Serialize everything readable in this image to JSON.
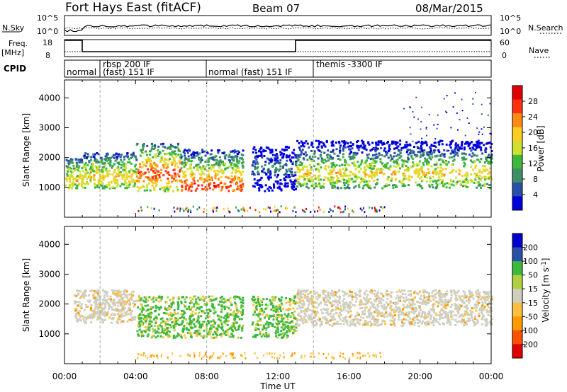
{
  "header": {
    "radar": "Fort Hays East (fitACF)",
    "beam": "Beam 07",
    "date": "08/Mar/2015"
  },
  "top_panels": {
    "nsky_label": "N.Sky",
    "nsky_ticks": [
      "10^5",
      "10^0"
    ],
    "nsearch_label": "N.Search",
    "nsearch_ticks": [
      "10^5",
      "10^0"
    ],
    "freq_label_1": "Freq.",
    "freq_label_2": "[MHz]",
    "freq_ticks": [
      "18",
      "8"
    ],
    "nave_label": "Nave",
    "nave_ticks": [
      "60",
      "0"
    ],
    "cpid_label": "CPID",
    "cpid_segments": [
      {
        "label": "normal",
        "start": 0,
        "end": 2
      },
      {
        "label": "rbsp 200 IF",
        "start": 2,
        "end": 8
      },
      {
        "label": "(fast) 151 IF",
        "start": 2,
        "end": 8
      },
      {
        "label": "normal (fast) 151 IF",
        "start": 8,
        "end": 14
      },
      {
        "label": "themis -3300 IF",
        "start": 14,
        "end": 24
      }
    ]
  },
  "colors": {
    "power": [
      "#0000dd",
      "#2850a8",
      "#3f8f66",
      "#3cb83c",
      "#cfe030",
      "#ffcc20",
      "#ff8a10",
      "#ff3010",
      "#e00000"
    ],
    "velocity": [
      "#e00000",
      "#ff5000",
      "#ff9a00",
      "#ffc040",
      "#cfcfc0",
      "#b0d040",
      "#3cb83c",
      "#2850a8",
      "#0000cc"
    ]
  },
  "chart_data": [
    {
      "type": "heatmap",
      "name": "power-panel",
      "ylabel": "Slant Range [km]",
      "xlabel": "Time UT",
      "xlim": [
        0,
        24
      ],
      "ylim": [
        0,
        4600
      ],
      "yticks": [
        1000,
        2000,
        3000,
        4000
      ],
      "xticks": [
        "00:00",
        "04:00",
        "08:00",
        "12:00",
        "16:00",
        "20:00",
        "00:00"
      ],
      "colorbar_label": "Power [dB]",
      "colorbar_ticks": [
        "28",
        "24",
        "20",
        "16",
        "12",
        "8",
        "4"
      ],
      "regions": [
        {
          "t0": 0.0,
          "t1": 1.0,
          "r0": 1000,
          "r1": 2000,
          "level": "mid",
          "peak": 1300
        },
        {
          "t0": 1.0,
          "t1": 4.0,
          "r0": 1000,
          "r1": 2200,
          "level": "mid",
          "peak": 1400
        },
        {
          "t0": 4.0,
          "t1": 6.5,
          "r0": 900,
          "r1": 2500,
          "level": "high",
          "peak": 1500
        },
        {
          "t0": 6.5,
          "t1": 10.0,
          "r0": 900,
          "r1": 2300,
          "level": "high",
          "peak": 1100
        },
        {
          "t0": 10.5,
          "t1": 13.0,
          "r0": 900,
          "r1": 2400,
          "level": "low",
          "peak": 1700
        },
        {
          "t0": 13.0,
          "t1": 24.0,
          "r0": 1000,
          "r1": 2600,
          "level": "mid",
          "peak": 1500
        }
      ]
    },
    {
      "type": "heatmap",
      "name": "velocity-panel",
      "ylabel": "Slant Range [km]",
      "xlabel": "Time UT",
      "xlim": [
        0,
        24
      ],
      "ylim": [
        0,
        4600
      ],
      "yticks": [
        1000,
        2000,
        3000,
        4000
      ],
      "xticks": [
        "00:00",
        "04:00",
        "08:00",
        "12:00",
        "16:00",
        "20:00",
        "00:00"
      ],
      "colorbar_label": "Velocity [m s^-1]",
      "colorbar_ticks": [
        "200",
        "100",
        "50",
        "15",
        "-15",
        "-50",
        "-100",
        "-200"
      ],
      "regions": [
        {
          "t0": 0.5,
          "t1": 4.0,
          "r0": 1400,
          "r1": 2500,
          "class": "gray"
        },
        {
          "t0": 4.0,
          "t1": 10.0,
          "r0": 900,
          "r1": 2300,
          "class": "green"
        },
        {
          "t0": 10.5,
          "t1": 13.0,
          "r0": 900,
          "r1": 2300,
          "class": "green"
        },
        {
          "t0": 13.0,
          "t1": 24.0,
          "r0": 1300,
          "r1": 2500,
          "class": "gray"
        }
      ]
    }
  ]
}
